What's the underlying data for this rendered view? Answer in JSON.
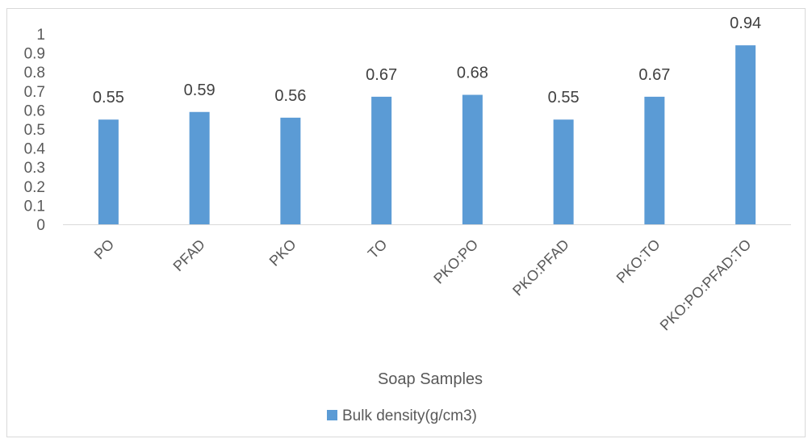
{
  "chart_data": {
    "type": "bar",
    "categories": [
      "PO",
      "PFAD",
      "PKO",
      "TO",
      "PKO:PO",
      "PKO:PFAD",
      "PKO:TO",
      "PKO:PO:PFAD:TO"
    ],
    "series": [
      {
        "name": "Bulk density(g/cm3)",
        "values": [
          0.55,
          0.59,
          0.56,
          0.67,
          0.68,
          0.55,
          0.67,
          0.94
        ]
      }
    ],
    "data_labels": [
      "0.55",
      "0.59",
      "0.56",
      "0.67",
      "0.68",
      "0.55",
      "0.67",
      "0.94"
    ],
    "yticks": [
      "0",
      "0.1",
      "0.2",
      "0.3",
      "0.4",
      "0.5",
      "0.6",
      "0.7",
      "0.8",
      "0.9",
      "1"
    ],
    "ylim": [
      0,
      1
    ],
    "xlabel": "Soap Samples",
    "ylabel": "",
    "title": "",
    "grid": false,
    "legend_position": "bottom",
    "bar_color": "#5b9bd5",
    "axis_color": "#d9d9d9"
  }
}
